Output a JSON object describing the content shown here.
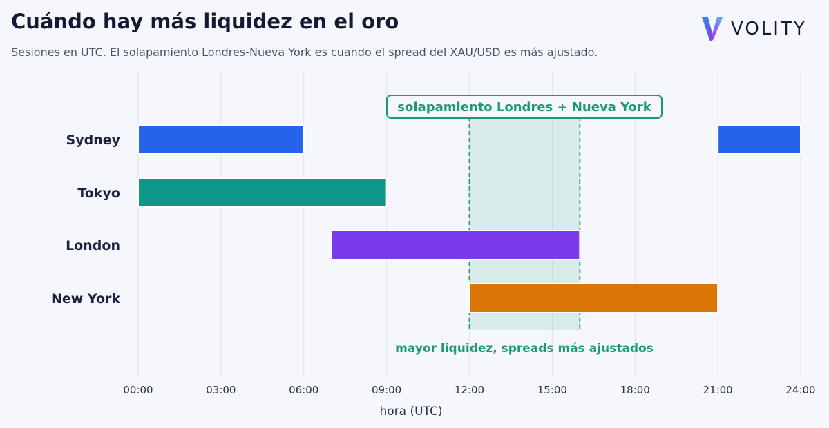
{
  "title": "Cuándo hay más liquidez en el oro",
  "subtitle": "Sesiones en UTC. El solapamiento Londres-Nueva York es cuando el spread del XAU/USD es más ajustado.",
  "brand": {
    "name": "VOLITY",
    "logo_icon": "volity-v-logo-icon"
  },
  "chart_data": {
    "type": "gantt",
    "x_range": [
      0,
      24
    ],
    "x_ticks": [
      0,
      3,
      6,
      9,
      12,
      15,
      18,
      21,
      24
    ],
    "tick_labels": [
      "00:00",
      "03:00",
      "06:00",
      "09:00",
      "12:00",
      "15:00",
      "18:00",
      "21:00",
      "24:00"
    ],
    "xlabel": "hora (UTC)",
    "grid": "vertical",
    "sessions": [
      {
        "name": "Sydney",
        "color": "#2563eb",
        "segments": [
          [
            0,
            6
          ],
          [
            21,
            24
          ]
        ]
      },
      {
        "name": "Tokyo",
        "color": "#0e968a",
        "segments": [
          [
            0,
            9
          ]
        ]
      },
      {
        "name": "London",
        "color": "#7c3aed",
        "segments": [
          [
            7,
            16
          ]
        ]
      },
      {
        "name": "New York",
        "color": "#d97706",
        "segments": [
          [
            12,
            21
          ]
        ]
      }
    ],
    "overlap": {
      "start": 12,
      "end": 16,
      "label": "solapamiento Londres + Nueva York",
      "note": "mayor liquidez, spreads más ajustados",
      "color": "#1e9a6e"
    }
  }
}
